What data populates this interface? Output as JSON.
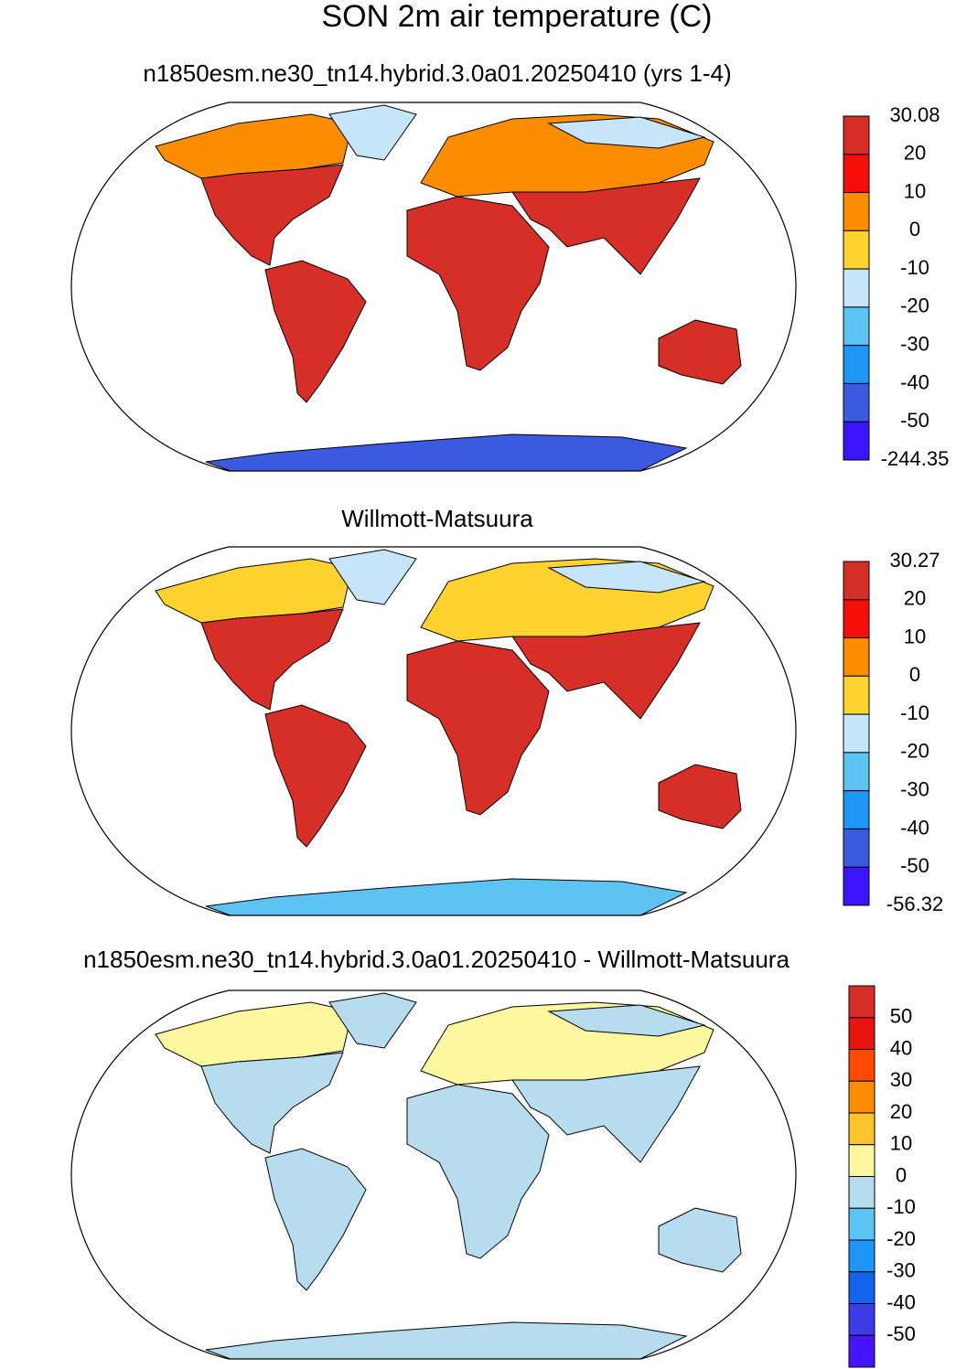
{
  "title": "SON 2m air temperature (C)",
  "panels": [
    {
      "subtitle": "n1850esm.ne30_tn14.hybrid.3.0a01.20250410 (yrs 1-4)",
      "colorbar": {
        "colors": [
          "#d62f27",
          "#f50f0a",
          "#fd8d00",
          "#fed330",
          "#c6e5f8",
          "#5cc3f2",
          "#1e96f5",
          "#3c5ae0",
          "#3c14ff"
        ],
        "labels": [
          30.08,
          20,
          10,
          0,
          -10,
          -20,
          -30,
          -40,
          -50,
          -244.35
        ]
      }
    },
    {
      "subtitle": "Willmott-Matsuura",
      "colorbar": {
        "colors": [
          "#d62f27",
          "#f50f0a",
          "#fd8d00",
          "#fed330",
          "#c6e5f8",
          "#5cc3f2",
          "#1e96f5",
          "#3c5ae0",
          "#3c14ff"
        ],
        "labels": [
          30.27,
          20,
          10,
          0,
          -10,
          -20,
          -30,
          -40,
          -50,
          -56.32
        ]
      }
    },
    {
      "subtitle": "n1850esm.ne30_tn14.hybrid.3.0a01.20250410 - Willmott-Matsuura",
      "colorbar": {
        "colors": [
          "#d62f27",
          "#e8150f",
          "#ff4a00",
          "#fe8c00",
          "#fec42f",
          "#fdf7a0",
          "#b7dcee",
          "#5cc3f2",
          "#1e96f5",
          "#1464eb",
          "#3c3ce6",
          "#4614ff"
        ],
        "labels": [
          50,
          40,
          30,
          20,
          10,
          0,
          -10,
          -20,
          -30,
          -40,
          -50
        ]
      }
    }
  ]
}
